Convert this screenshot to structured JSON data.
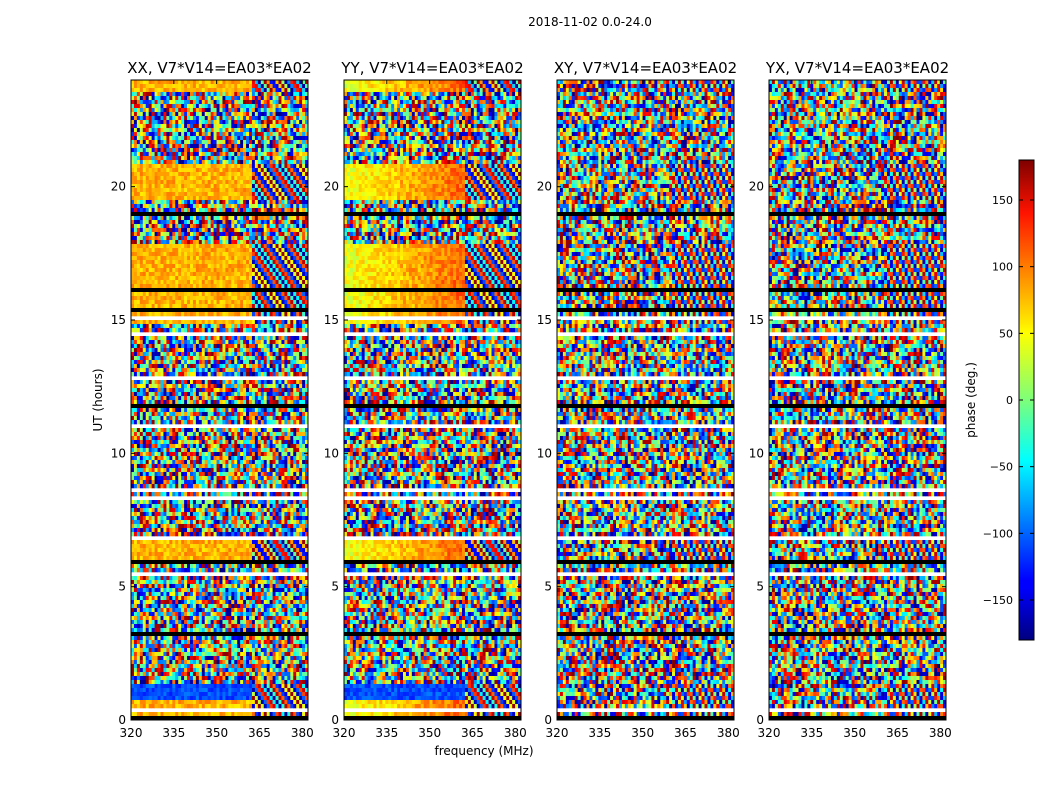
{
  "figure": {
    "suptitle": "2018-11-02 0.0-24.0",
    "xlabel": "frequency (MHz)",
    "ylabel": "UT (hours)"
  },
  "chart_data": [
    {
      "type": "heatmap",
      "title": "XX, V7*V14=EA03*EA02",
      "polarization": "XX",
      "pattern": "smooth_xx",
      "xlim": [
        320,
        382
      ],
      "ylim": [
        0,
        24
      ],
      "xticks": [
        320,
        335,
        350,
        365,
        380
      ],
      "yticks": [
        0,
        5,
        10,
        15,
        20
      ],
      "xlabel": "",
      "ylabel": "UT (hours)"
    },
    {
      "type": "heatmap",
      "title": "YY, V7*V14=EA03*EA02",
      "polarization": "YY",
      "pattern": "smooth_yy",
      "xlim": [
        320,
        382
      ],
      "ylim": [
        0,
        24
      ],
      "xticks": [
        320,
        335,
        350,
        365,
        380
      ],
      "yticks": [
        0,
        5,
        10,
        15,
        20
      ],
      "xlabel": "frequency (MHz)",
      "ylabel": ""
    },
    {
      "type": "heatmap",
      "title": "XY, V7*V14=EA03*EA02",
      "polarization": "XY",
      "pattern": "noise",
      "xlim": [
        320,
        382
      ],
      "ylim": [
        0,
        24
      ],
      "xticks": [
        320,
        335,
        350,
        365,
        380
      ],
      "yticks": [
        0,
        5,
        10,
        15,
        20
      ],
      "xlabel": "",
      "ylabel": ""
    },
    {
      "type": "heatmap",
      "title": "YX, V7*V14=EA03*EA02",
      "polarization": "YX",
      "pattern": "noise",
      "xlim": [
        320,
        382
      ],
      "ylim": [
        0,
        24
      ],
      "xticks": [
        320,
        335,
        350,
        365,
        380
      ],
      "yticks": [
        0,
        5,
        10,
        15,
        20
      ],
      "xlabel": "",
      "ylabel": ""
    }
  ],
  "colorbar": {
    "label": "phase (deg.)",
    "range": [
      -180,
      180
    ],
    "ticks": [
      150,
      100,
      50,
      0,
      -50,
      -100,
      -150
    ],
    "tick_labels": [
      "150",
      "100",
      "50",
      "0",
      "−50",
      "−100",
      "−150"
    ],
    "colormap": "jet"
  },
  "colors": {
    "axis": "#000000",
    "background": "#ffffff",
    "flagged": "#ffffff"
  }
}
